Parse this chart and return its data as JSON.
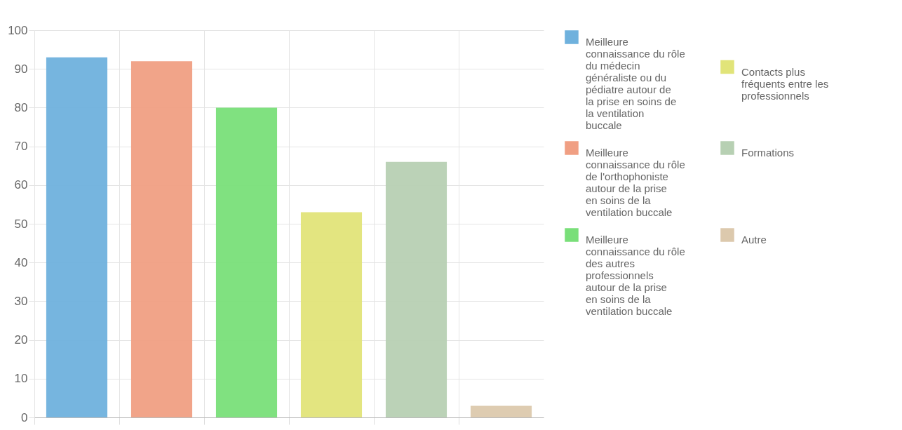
{
  "chart_data": {
    "type": "bar",
    "categories": [
      null,
      null,
      null,
      null,
      null,
      null
    ],
    "series": [
      {
        "name": "Meilleure connaissance du rôle du médecin généraliste ou du pédiatre autour de la prise en soins de la ventilation buccale",
        "color": "#6fb1dd",
        "values": [
          93,
          null,
          null,
          null,
          null,
          null
        ]
      },
      {
        "name": "Meilleure connaissance du rôle de l'orthophoniste autour de la prise en soins de la ventilation buccale",
        "color": "#f09f83",
        "values": [
          null,
          92,
          null,
          null,
          null,
          null
        ]
      },
      {
        "name": "Meilleure connaissance du rôle des autres professionnels autour de la prise en soins de la ventilation buccale",
        "color": "#79df79",
        "values": [
          null,
          null,
          80,
          null,
          null,
          null
        ]
      },
      {
        "name": "Contacts plus fréquents entre les professionnels",
        "color": "#e1e479",
        "values": [
          null,
          null,
          null,
          53,
          null,
          null
        ]
      },
      {
        "name": "Formations",
        "color": "#b7d0b3",
        "values": [
          null,
          null,
          null,
          null,
          66,
          null
        ]
      },
      {
        "name": "Autre",
        "color": "#dcc9ad",
        "values": [
          null,
          null,
          null,
          null,
          null,
          3
        ]
      }
    ],
    "ylim": [
      0,
      100
    ],
    "yticks": [
      0,
      10,
      20,
      30,
      40,
      50,
      60,
      70,
      80,
      90,
      100
    ],
    "grid": true,
    "legend": "right",
    "tick_labels": "y"
  }
}
